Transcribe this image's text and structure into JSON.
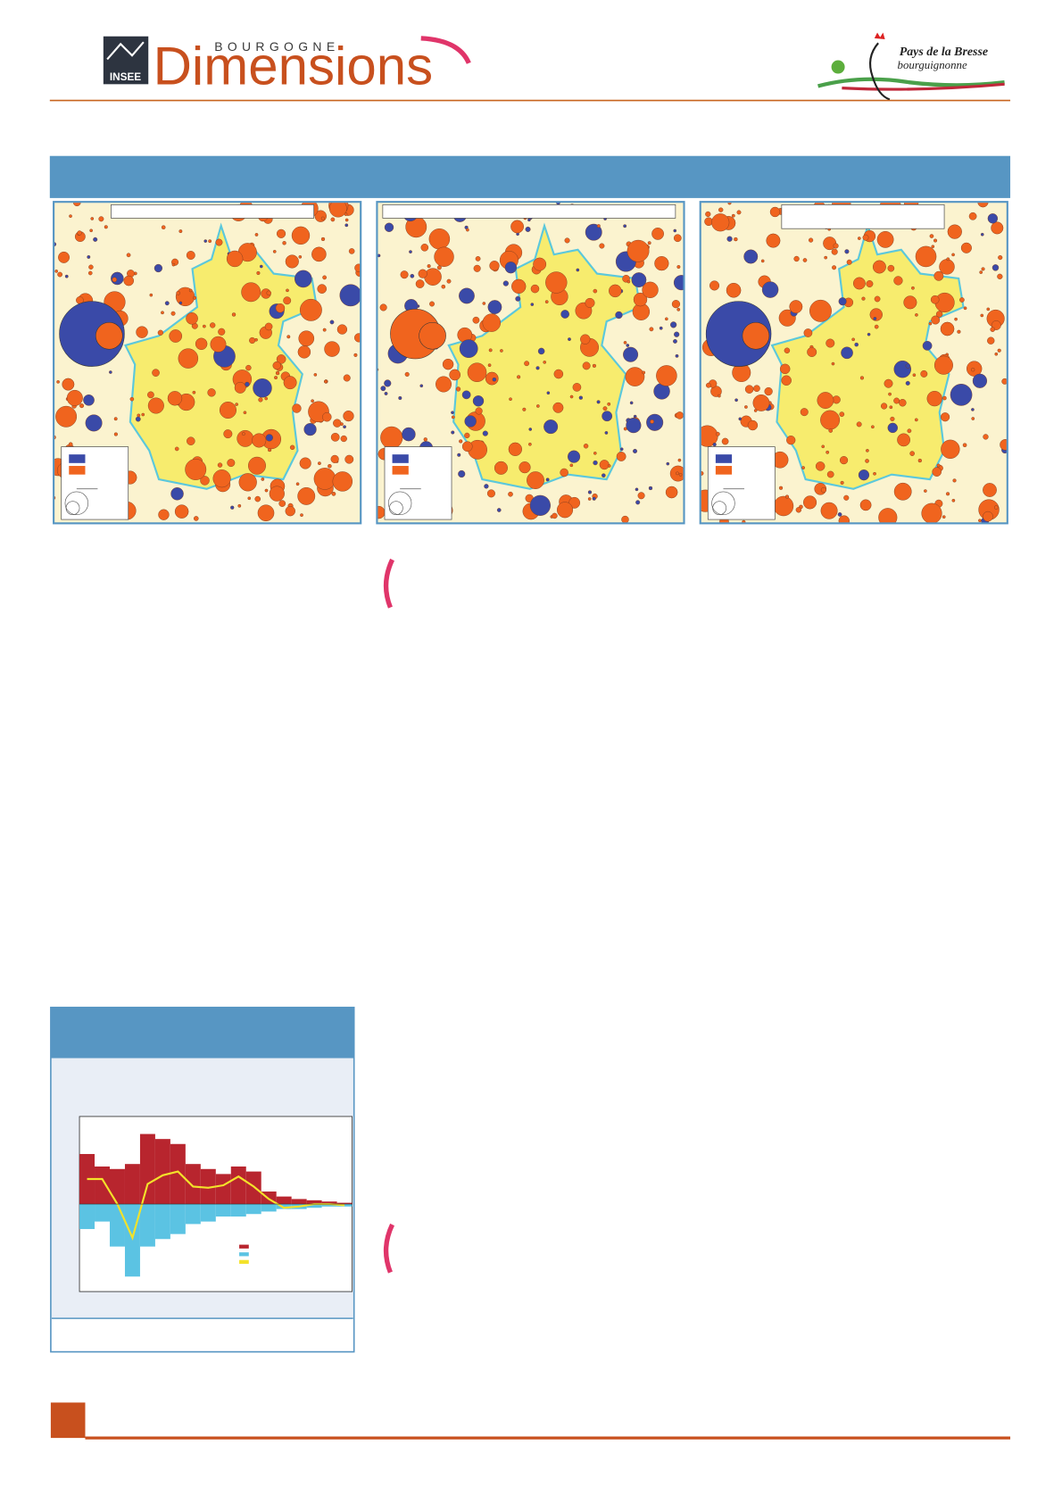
{
  "header": {
    "brand_small": "INSEE",
    "brand_top": "BOURGOGNE",
    "brand_title": "Dimensions",
    "partner_line1": "Pays de la Bresse",
    "partner_line2": "bourguignonne"
  },
  "chart_data": {
    "type": "bar",
    "ylim": [
      -3.5,
      3.5
    ],
    "series": [
      {
        "color": "#b8252e",
        "values": [
          2.0,
          1.5,
          1.4,
          1.6,
          2.8,
          2.6,
          2.4,
          1.6,
          1.4,
          1.2,
          1.5,
          1.3,
          0.5,
          0.3,
          0.2,
          0.15,
          0.1,
          0.05
        ]
      },
      {
        "color": "#5bc3e3",
        "values": [
          -1.0,
          -0.7,
          -1.7,
          -2.9,
          -1.7,
          -1.4,
          -1.2,
          -0.8,
          -0.7,
          -0.5,
          -0.5,
          -0.4,
          -0.3,
          -0.2,
          -0.2,
          -0.15,
          -0.1,
          -0.1
        ]
      },
      {
        "type": "line",
        "color": "#f3e22a",
        "values": [
          1.0,
          1.0,
          0,
          -1.35,
          0.8,
          1.15,
          1.3,
          0.7,
          0.65,
          0.75,
          1.1,
          0.7,
          0.2,
          -0.15,
          -0.1,
          0,
          0,
          -0.05
        ]
      }
    ]
  }
}
